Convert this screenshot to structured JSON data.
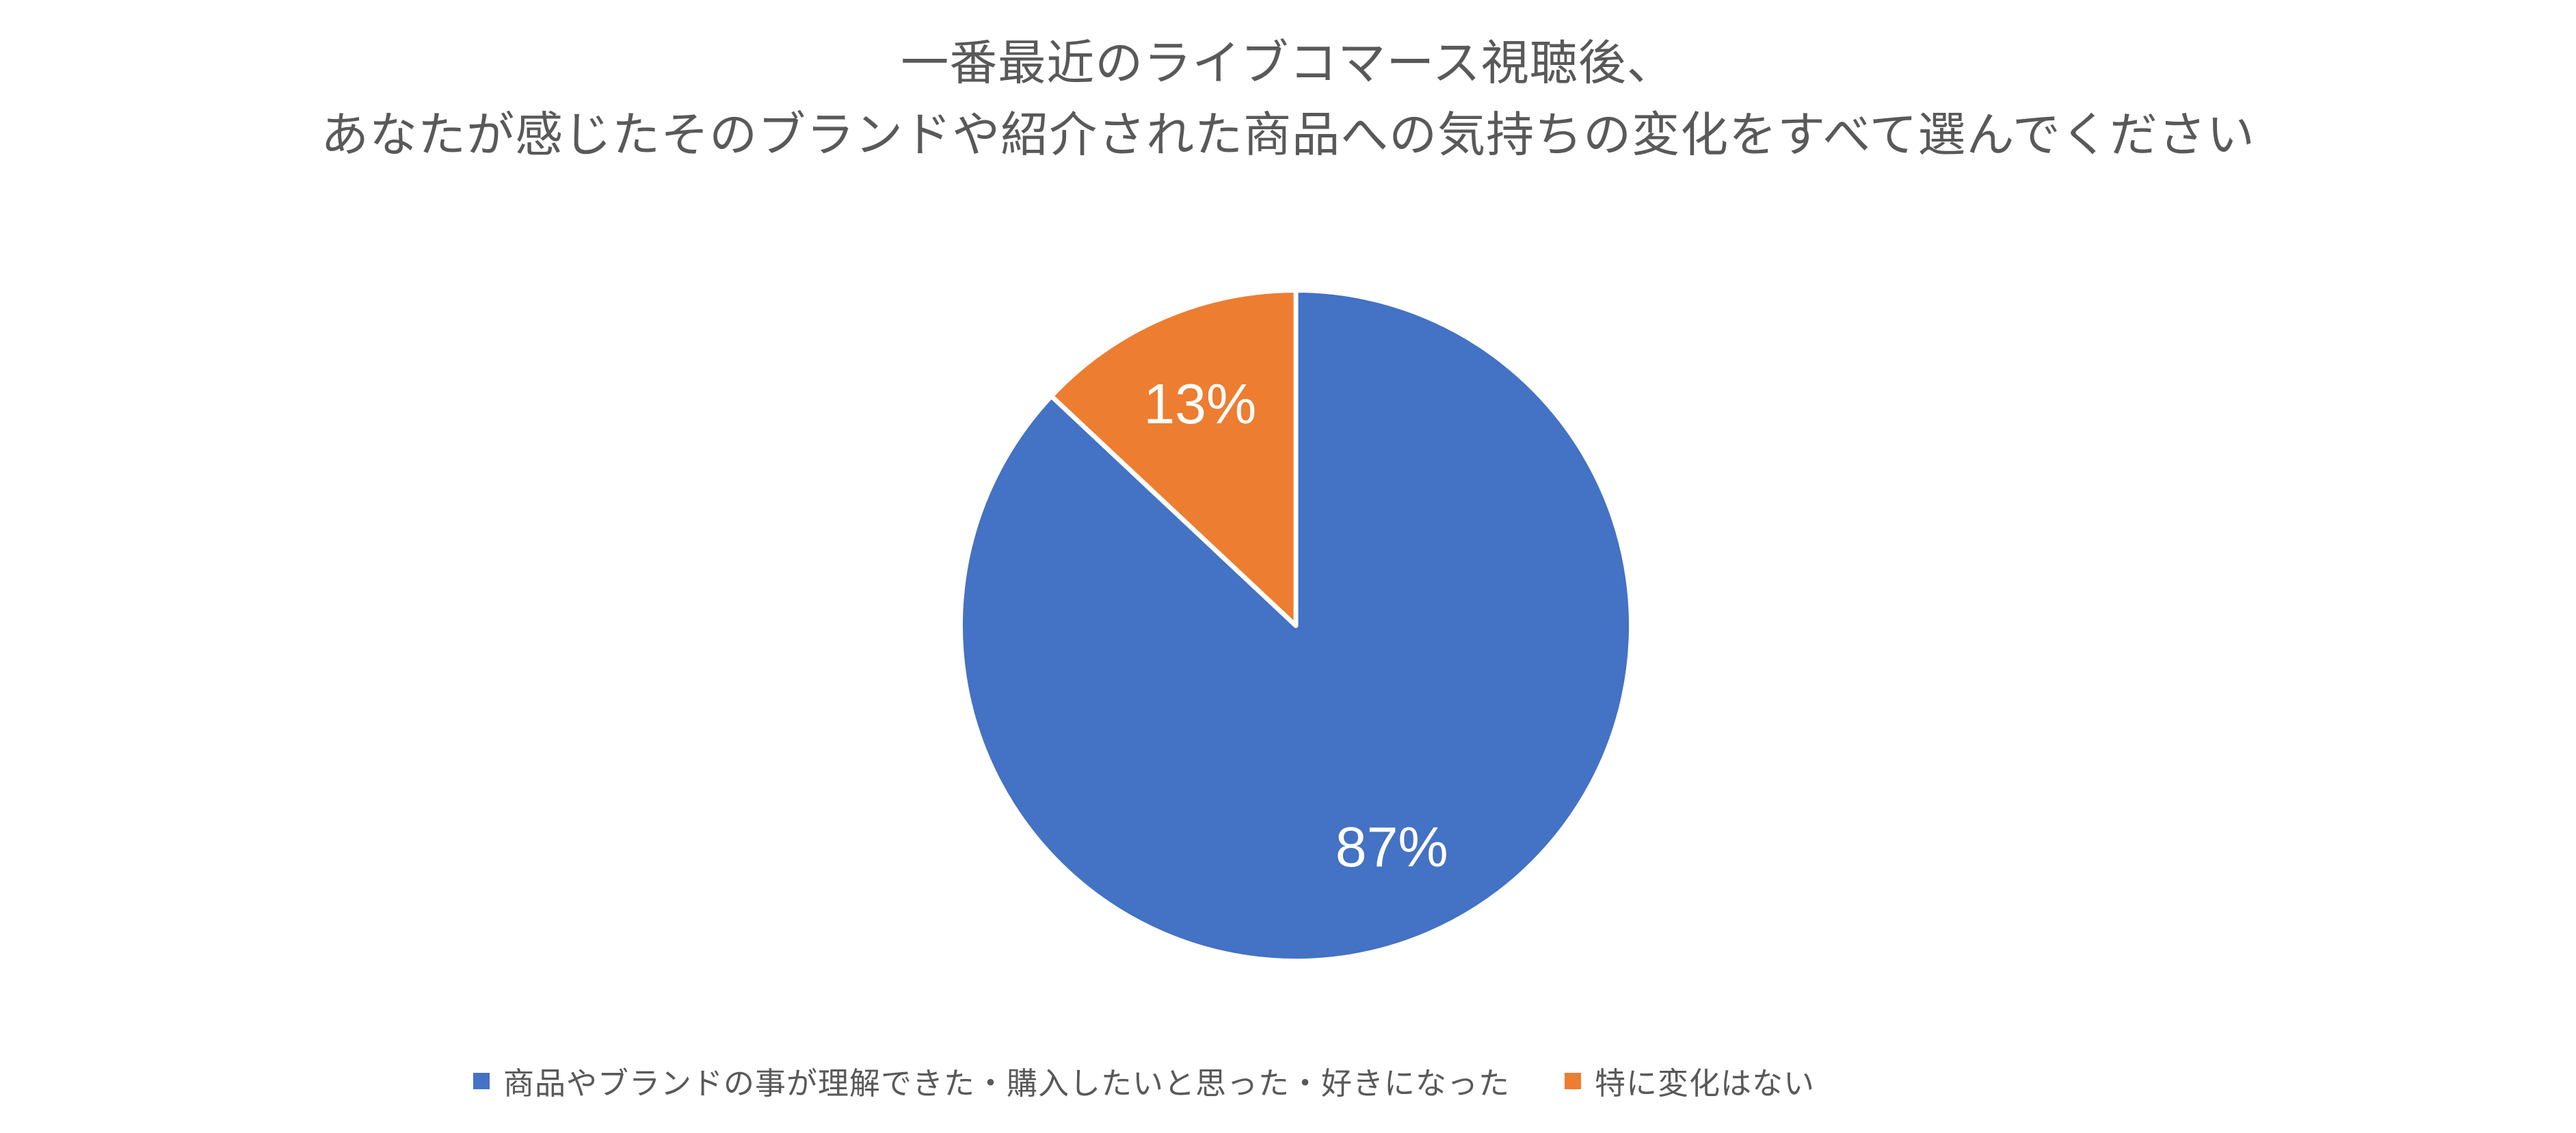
{
  "chart_data": {
    "type": "pie",
    "title_lines": [
      "一番最近のライブコマース視聴後、",
      "あなたが感じたそのブランドや紹介された商品への気持ちの変化をすべて選んでください"
    ],
    "categories": [
      "商品やブランドの事が理解できた・購入したいと思った・好きになった",
      "特に変化はない"
    ],
    "values": [
      87,
      13
    ],
    "data_labels": [
      "87%",
      "13%"
    ],
    "colors": [
      "#4472C4",
      "#ED7D31"
    ],
    "slice_border_color": "#FFFFFF",
    "data_label_color": "#FFFFFF",
    "title_color": "#595959",
    "legend_text_color": "#595959",
    "legend_position": "bottom",
    "start_angle_deg": 0,
    "direction": "clockwise",
    "grid": false,
    "background": "#FFFFFF"
  }
}
